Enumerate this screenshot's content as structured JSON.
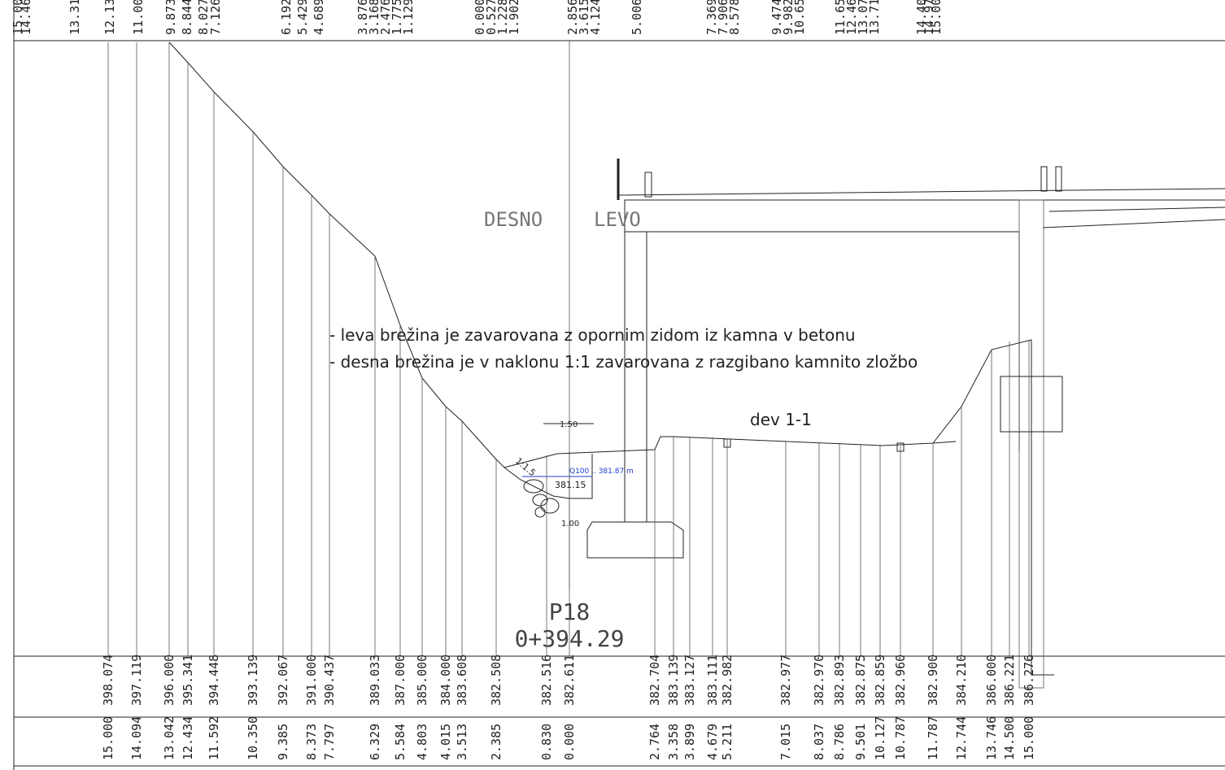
{
  "top_distances": [
    "15.000",
    "14.460",
    "13.310",
    "12.132",
    "11.004",
    "9.873",
    "8.844",
    "8.027",
    "7.126",
    "6.192",
    "5.429",
    "4.689",
    "3.876",
    "3.168",
    "2.476",
    "1.775",
    "1.129",
    "0.000",
    "0.527",
    "1.228",
    "1.902",
    "2.856",
    "3.615",
    "4.124",
    "5.006",
    "7.369",
    "7.906",
    "8.578",
    "9.474",
    "9.982",
    "10.656",
    "11.656",
    "12.460",
    "13.070",
    "13.713",
    "14.403",
    "14.97",
    "15.000"
  ],
  "labels": {
    "desno": "DESNO",
    "levo": "LEVO",
    "note_1": "- leva brežina je zavarovana z opornim zidom iz kamna v betonu",
    "note_2": "- desna brežina je v naklonu 1:1 zavarovana z razgibano kamnito zložbo",
    "deviation": "dev 1-1",
    "width_top": "1.50",
    "width_bottom": "1.00",
    "water_level": "Q100 .. 381.87 m",
    "bed_level": "381.15",
    "slope": "1:1.5",
    "profile": "P18",
    "chainage": "0+394.29"
  },
  "elevations": [
    "398.074",
    "397.119",
    "396.000",
    "395.341",
    "394.448",
    "393.139",
    "392.067",
    "391.000",
    "390.437",
    "389.033",
    "387.000",
    "385.000",
    "384.000",
    "383.608",
    "382.508",
    "382.516",
    "382.611",
    "382.704",
    "383.139",
    "383.127",
    "383.111",
    "382.982",
    "382.977",
    "382.970",
    "382.893",
    "382.875",
    "382.859",
    "382.960",
    "382.900",
    "384.210",
    "386.000",
    "386.221",
    "386.276"
  ],
  "distances": [
    "15.000",
    "14.094",
    "13.042",
    "12.434",
    "11.592",
    "10.350",
    "9.385",
    "8.373",
    "7.797",
    "6.329",
    "5.584",
    "4.803",
    "4.015",
    "3.513",
    "2.385",
    "0.830",
    "0.000",
    "2.764",
    "3.358",
    "3.899",
    "4.679",
    "5.211",
    "7.015",
    "8.037",
    "8.786",
    "9.501",
    "10.127",
    "10.787",
    "11.787",
    "12.744",
    "13.746",
    "14.500",
    "15.000"
  ]
}
